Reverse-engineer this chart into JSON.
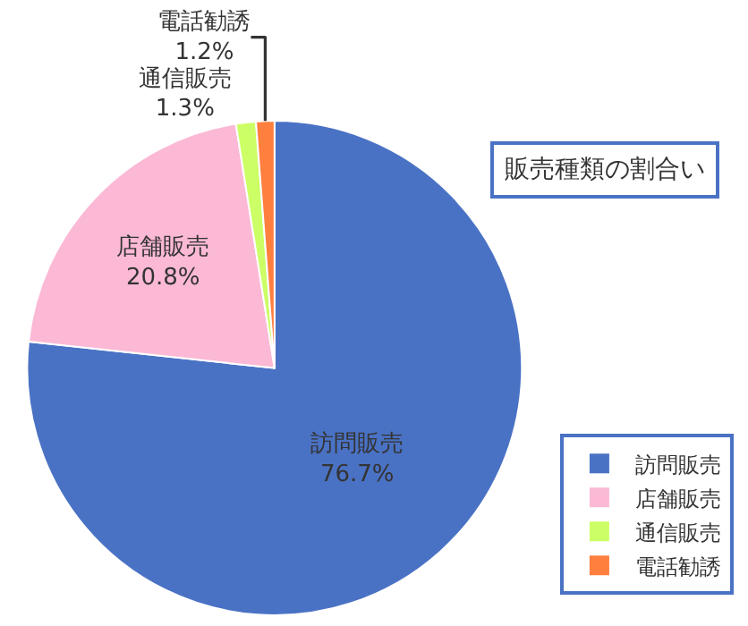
{
  "chart_data": {
    "type": "pie",
    "title": "販売種類の割合い",
    "categories": [
      "訪問販売",
      "店舗販売",
      "通信販売",
      "電話勧誘"
    ],
    "values": [
      76.7,
      20.8,
      1.3,
      1.2
    ],
    "colors": [
      "#4a72c4",
      "#fbb9d6",
      "#ccff66",
      "#ff7f3f"
    ],
    "value_labels": [
      "76.7%",
      "20.8%",
      "1.3%",
      "1.2%"
    ],
    "legend": "bottom right"
  }
}
